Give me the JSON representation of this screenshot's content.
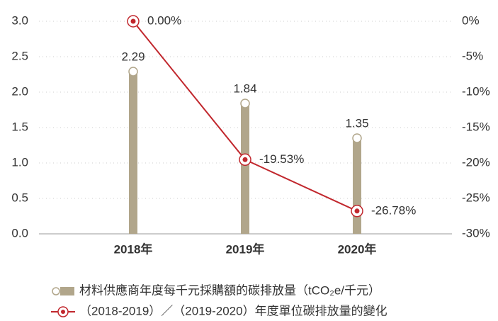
{
  "chart_data": {
    "type": "bar_line",
    "categories": [
      "2018年",
      "2019年",
      "2020年"
    ],
    "series": [
      {
        "name": "材料供應商年度每千元採購額的碳排放量（tCO₂e/千元）",
        "color": "#b1a68b",
        "values": [
          2.29,
          1.84,
          1.35
        ]
      },
      {
        "name": "（2018-2019）／（2019-2020）年度單位碳排放量的變化",
        "color": "#c1272d",
        "values": [
          0,
          -19.53,
          -26.78
        ],
        "value_labels": [
          "0.00%",
          "-19.53%",
          "-26.78%"
        ],
        "axis": "y2"
      }
    ],
    "ylim": [
      0,
      3
    ],
    "yticks": [
      {
        "value": 0,
        "label": "0.0"
      },
      0.5,
      {
        "value": 1,
        "label": "1.0"
      },
      1.5,
      {
        "value": 2,
        "label": "2.0"
      },
      2.5,
      {
        "value": 3,
        "label": "3.0"
      }
    ],
    "y2lim": [
      -30,
      0
    ],
    "y2ticks": [
      {
        "value": 0,
        "label": "0%"
      },
      {
        "value": -5,
        "label": "-5%"
      },
      {
        "value": -10,
        "label": "-10%"
      },
      {
        "value": -15,
        "label": "-15%"
      },
      {
        "value": -20,
        "label": "-20%"
      },
      {
        "value": -25,
        "label": "-25%"
      },
      {
        "value": -30,
        "label": "-30%"
      }
    ],
    "grid": true
  }
}
